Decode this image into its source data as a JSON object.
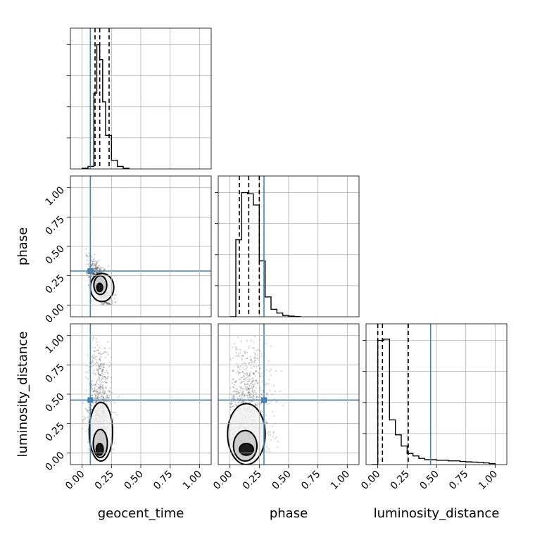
{
  "chart_data": {
    "type": "corner",
    "parameters": [
      "geocent_time",
      "phase",
      "luminosity_distance"
    ],
    "axis_range": [
      -0.1,
      1.1
    ],
    "ticks": [
      0.0,
      0.25,
      0.5,
      0.75,
      1.0
    ],
    "tick_labels": [
      "0.00",
      "0.25",
      "0.50",
      "0.75",
      "1.00"
    ],
    "grid": true,
    "truths": {
      "geocent_time": 0.07,
      "phase": 0.29,
      "luminosity_distance": 0.45
    },
    "truth_color": "#4682b4",
    "histograms": {
      "geocent_time": {
        "bin_edges": [
          0.0,
          0.05,
          0.1,
          0.125,
          0.15,
          0.175,
          0.2,
          0.25,
          0.3,
          0.35,
          0.4
        ],
        "counts": [
          0.005,
          0.02,
          0.61,
          1.0,
          0.88,
          0.54,
          0.27,
          0.07,
          0.02,
          0.005
        ],
        "quantiles": [
          0.11,
          0.15,
          0.23
        ]
      },
      "phase": {
        "bin_edges": [
          0.0,
          0.05,
          0.1,
          0.15,
          0.2,
          0.25,
          0.3,
          0.35,
          0.4,
          0.45,
          0.5,
          0.55,
          0.6
        ],
        "counts": [
          0.0,
          0.62,
          1.0,
          0.99,
          0.9,
          0.45,
          0.16,
          0.06,
          0.03,
          0.01,
          0.005,
          0.002
        ],
        "quantiles": [
          0.08,
          0.16,
          0.25
        ]
      },
      "luminosity_distance": {
        "bin_edges": [
          -0.05,
          0.0,
          0.05,
          0.1,
          0.15,
          0.2,
          0.25,
          0.3,
          0.35,
          0.4,
          0.45,
          0.5,
          0.55,
          0.6,
          0.65,
          0.7,
          0.75,
          0.8,
          0.85,
          0.9,
          0.95,
          1.0
        ],
        "counts": [
          0.0,
          1.0,
          1.01,
          0.36,
          0.24,
          0.15,
          0.09,
          0.07,
          0.05,
          0.04,
          0.04,
          0.035,
          0.035,
          0.03,
          0.03,
          0.025,
          0.022,
          0.02,
          0.018,
          0.014,
          0.008
        ],
        "quantiles": [
          0.0,
          0.04,
          0.26
        ]
      }
    },
    "pairs": [
      {
        "x": "geocent_time",
        "y": "phase",
        "scatter_center": [
          0.15,
          0.18
        ],
        "scatter_spread": [
          0.045,
          0.1
        ],
        "correlation": -0.65,
        "contours": [
          {
            "level": "outer",
            "center": [
              0.17,
              0.15
            ],
            "radii": [
              0.1,
              0.12
            ]
          },
          {
            "level": "middle",
            "center": [
              0.155,
              0.17
            ],
            "radii": [
              0.055,
              0.08
            ]
          },
          {
            "level": "inner",
            "center": [
              0.15,
              0.15
            ],
            "radii": [
              0.025,
              0.035
            ]
          }
        ]
      },
      {
        "x": "geocent_time",
        "y": "luminosity_distance",
        "scatter_center": [
          0.15,
          0.35
        ],
        "scatter_spread": [
          0.05,
          0.3
        ],
        "correlation": 0.0,
        "contours": [
          {
            "level": "outer",
            "center": [
              0.16,
              0.18
            ],
            "radii": [
              0.1,
              0.25
            ]
          },
          {
            "level": "middle",
            "center": [
              0.155,
              0.08
            ],
            "radii": [
              0.06,
              0.12
            ]
          },
          {
            "level": "inner",
            "center": [
              0.15,
              0.03
            ],
            "radii": [
              0.03,
              0.05
            ]
          }
        ]
      },
      {
        "x": "phase",
        "y": "luminosity_distance",
        "scatter_center": [
          0.15,
          0.35
        ],
        "scatter_spread": [
          0.1,
          0.3
        ],
        "correlation": 0.0,
        "contours": [
          {
            "level": "outer",
            "center": [
              0.14,
              0.16
            ],
            "radii": [
              0.16,
              0.26
            ]
          },
          {
            "level": "middle",
            "center": [
              0.13,
              0.06
            ],
            "radii": [
              0.1,
              0.13
            ]
          },
          {
            "level": "inner",
            "center": [
              0.14,
              0.03
            ],
            "radii": [
              0.06,
              0.05
            ]
          }
        ]
      }
    ]
  }
}
